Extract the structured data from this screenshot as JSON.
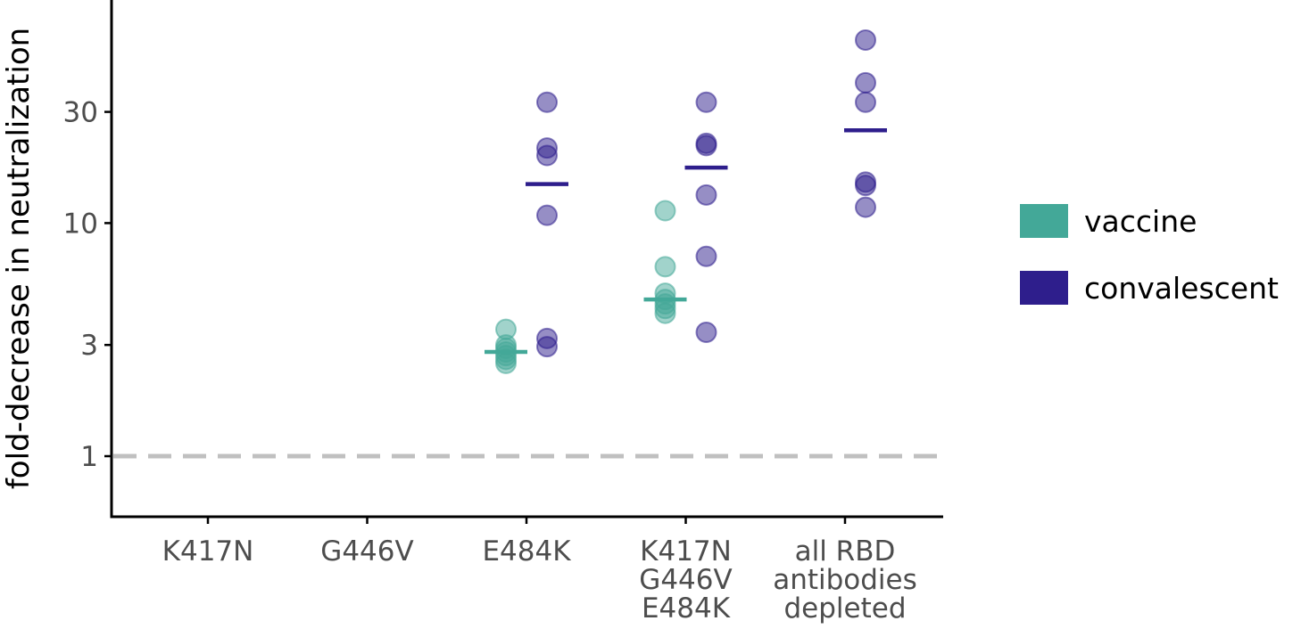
{
  "chart_data": {
    "type": "scatter",
    "title": "",
    "xlabel": "",
    "ylabel": "fold-decrease in neutralization",
    "y_scale": "log",
    "ylim": [
      0.65,
      75
    ],
    "yticks": [
      {
        "value": 1,
        "label": "1"
      },
      {
        "value": 3,
        "label": "3"
      },
      {
        "value": 10,
        "label": "10"
      },
      {
        "value": 30,
        "label": "30"
      }
    ],
    "reference_line": {
      "value": 1,
      "style": "dashed",
      "color": "#c0c0c0"
    },
    "categories": [
      {
        "key": "K417N",
        "lines": [
          "K417N"
        ]
      },
      {
        "key": "G446V",
        "lines": [
          "G446V"
        ]
      },
      {
        "key": "E484K",
        "lines": [
          "E484K"
        ]
      },
      {
        "key": "K417N G446V E484K",
        "lines": [
          "K417N",
          "G446V",
          "E484K"
        ]
      },
      {
        "key": "all RBD antibodies depleted",
        "lines": [
          "all RBD",
          "antibodies",
          "depleted"
        ]
      }
    ],
    "series": [
      {
        "name": "vaccine",
        "color": "#43a898",
        "points": {
          "E484K": [
            3.5,
            3.0,
            2.9,
            2.8,
            2.7,
            2.6,
            2.5
          ],
          "K417N G446V E484K": [
            11.3,
            6.5,
            5.0,
            4.7,
            4.5,
            4.3,
            4.1
          ]
        },
        "medians": {
          "E484K": 2.8,
          "K417N G446V E484K": 4.7
        }
      },
      {
        "name": "convalescent",
        "color": "#2e1e8c",
        "points": {
          "E484K": [
            33,
            21,
            19.5,
            10.8,
            3.2,
            2.95
          ],
          "K417N G446V E484K": [
            33,
            22,
            21.5,
            13.2,
            7.2,
            3.4
          ],
          "all RBD antibodies depleted": [
            61,
            40,
            33,
            15,
            14.5,
            11.7
          ]
        },
        "medians": {
          "E484K": 14.7,
          "K417N G446V E484K": 17.3,
          "all RBD antibodies depleted": 25
        }
      }
    ],
    "legend": {
      "position": "right",
      "entries": [
        "vaccine",
        "convalescent"
      ]
    },
    "grid": false
  }
}
